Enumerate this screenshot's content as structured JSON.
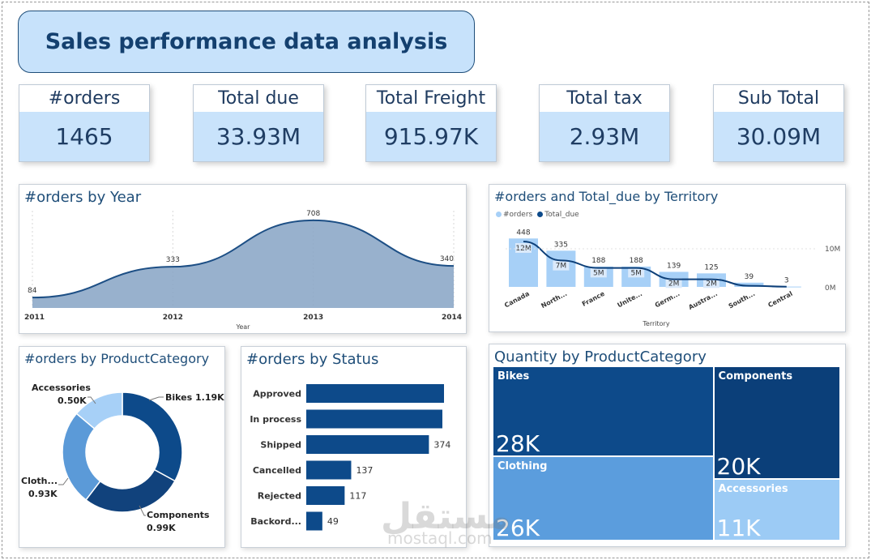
{
  "header": {
    "title": "Sales performance data analysis"
  },
  "kpis": [
    {
      "label": "#orders",
      "value": "1465"
    },
    {
      "label": "Total due",
      "value": "33.93M"
    },
    {
      "label": "Total Freight",
      "value": "915.97K"
    },
    {
      "label": "Total tax",
      "value": "2.93M"
    },
    {
      "label": "Sub Total",
      "value": "30.09M"
    }
  ],
  "colors": {
    "dark": "#0d4a8a",
    "mid": "#3f7fc4",
    "light": "#a7d0f7",
    "area": "#8aa6c6"
  },
  "chart_data": [
    {
      "type": "area",
      "title": "#orders by Year",
      "xlabel": "Year",
      "x": [
        "2011",
        "2012",
        "2013",
        "2014"
      ],
      "values": [
        84,
        333,
        708,
        340
      ],
      "labels": [
        "84",
        "333",
        "708",
        "340"
      ]
    },
    {
      "type": "bar",
      "title": "#orders and Total_due by Territory",
      "xlabel": "Territory",
      "legend": [
        "#orders",
        "Total_due"
      ],
      "categories": [
        "Canada",
        "North...",
        "France",
        "Unite...",
        "Germ...",
        "Austra...",
        "South...",
        "Central"
      ],
      "series": [
        {
          "name": "#orders",
          "values": [
            448,
            335,
            188,
            188,
            139,
            125,
            39,
            3
          ],
          "labels": [
            "448",
            "335",
            "188",
            "188",
            "139",
            "125",
            "39",
            "3"
          ]
        },
        {
          "name": "Total_due",
          "values": [
            12,
            7,
            5,
            5,
            2,
            2,
            0.3,
            0.05
          ],
          "labels": [
            "12M",
            "7M",
            "5M",
            "5M",
            "2M",
            "2M",
            "",
            ""
          ]
        }
      ],
      "y2_ticks": [
        "10M",
        "0M"
      ]
    },
    {
      "type": "pie",
      "title": "#orders by ProductCategory",
      "categories": [
        "Bikes",
        "Components",
        "Clothing",
        "Accessories"
      ],
      "values": [
        1.19,
        0.99,
        0.93,
        0.5
      ],
      "labels": [
        {
          "name": "Bikes",
          "value": "1.19K"
        },
        {
          "name": "Components",
          "value": "0.99K"
        },
        {
          "name": "Cloth...",
          "value": "0.93K"
        },
        {
          "name": "Accessories",
          "value": "0.50K"
        }
      ]
    },
    {
      "type": "bar",
      "orientation": "horizontal",
      "title": "#orders by Status",
      "categories": [
        "Approved",
        "In process",
        "Shipped",
        "Cancelled",
        "Rejected",
        "Backord..."
      ],
      "values": [
        420,
        415,
        374,
        137,
        117,
        49
      ],
      "labels": [
        "",
        "",
        "374",
        "137",
        "117",
        "49"
      ]
    },
    {
      "type": "treemap",
      "title": "Quantity by ProductCategory",
      "categories": [
        "Bikes",
        "Clothing",
        "Components",
        "Accessories"
      ],
      "values": [
        28,
        26,
        20,
        11
      ],
      "labels": [
        "28K",
        "26K",
        "20K",
        "11K"
      ]
    }
  ],
  "watermark": {
    "text": "مستقل",
    "sub": "mostaql.com"
  }
}
